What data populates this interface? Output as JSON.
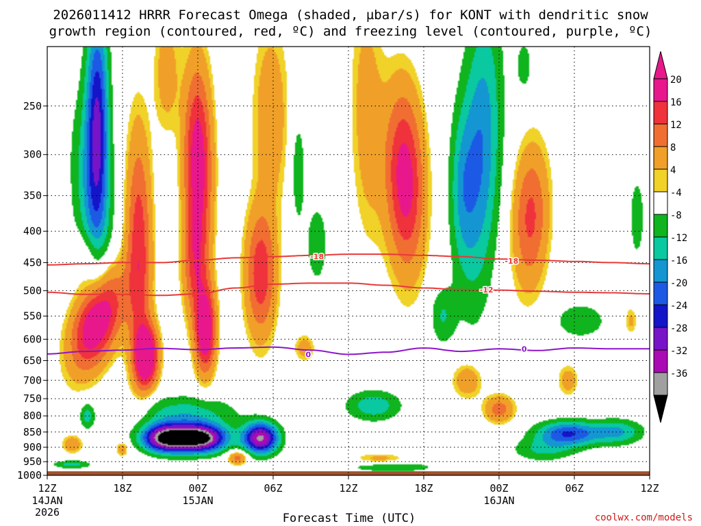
{
  "chart_data": {
    "type": "heatmap",
    "title_line1": "2026011412 HRRR Forecast Omega (shaded, µbar/s) for KONT with dendritic snow",
    "title_line2": "growth region (contoured, red, ºC) and freezing level (contoured, purple, ºC)",
    "xlabel": "Forecast Time (UTC)",
    "ylabel": "",
    "credit": "coolwx.com/models",
    "x_ticks": [
      {
        "hour": 0,
        "label": "12Z",
        "date": "14JAN",
        "year": "2026"
      },
      {
        "hour": 6,
        "label": "18Z"
      },
      {
        "hour": 12,
        "label": "00Z",
        "date": "15JAN"
      },
      {
        "hour": 18,
        "label": "06Z"
      },
      {
        "hour": 24,
        "label": "12Z"
      },
      {
        "hour": 30,
        "label": "18Z"
      },
      {
        "hour": 36,
        "label": "00Z",
        "date": "16JAN"
      },
      {
        "hour": 42,
        "label": "06Z"
      },
      {
        "hour": 48,
        "label": "12Z"
      }
    ],
    "y_ticks": [
      "250",
      "300",
      "350",
      "400",
      "450",
      "500",
      "550",
      "600",
      "650",
      "700",
      "750",
      "800",
      "850",
      "900",
      "950",
      "1000"
    ],
    "y_range_hpa": [
      200,
      1000
    ],
    "x_range_hours": [
      0,
      48
    ],
    "colorbar": {
      "labels": [
        "20",
        "16",
        "12",
        "8",
        "4",
        "-4",
        "-8",
        "-12",
        "-16",
        "-20",
        "-24",
        "-28",
        "-32",
        "-36"
      ],
      "colors": [
        "#e8188c",
        "#f0323c",
        "#f06e32",
        "#f0a028",
        "#f0d228",
        "#ffffff",
        "#10b41e",
        "#0ac8a0",
        "#1496d2",
        "#1c5ae6",
        "#1414c8",
        "#7814c8",
        "#aa0ab4",
        "#a0a0a0"
      ],
      "top_arrow_color": "#e8188c",
      "bottom_arrow_color": "#000000"
    },
    "contours": [
      {
        "name": "dgz-upper",
        "label": "-18",
        "color": "#e83838",
        "hours": [
          0,
          3,
          6,
          9,
          12,
          15,
          18,
          21,
          24,
          27,
          30,
          33,
          36,
          39,
          42,
          45,
          48
        ],
        "pressure": [
          454,
          452,
          450,
          450,
          446,
          442,
          440,
          438,
          436,
          436,
          438,
          440,
          444,
          446,
          448,
          450,
          452
        ]
      },
      {
        "name": "dgz-lower",
        "label": "-12",
        "color": "#e83838",
        "hours": [
          0,
          3,
          6,
          9,
          12,
          15,
          18,
          21,
          24,
          27,
          30,
          33,
          36,
          39,
          42,
          45,
          48
        ],
        "pressure": [
          503,
          507,
          507,
          509,
          506,
          495,
          488,
          486,
          486,
          490,
          495,
          498,
          499,
          501,
          503,
          504,
          506
        ]
      },
      {
        "name": "freezing-level",
        "label": "0",
        "color": "#8c14c8",
        "hours": [
          0,
          3,
          6,
          9,
          12,
          15,
          18,
          21,
          24,
          27,
          30,
          33,
          36,
          39,
          42,
          45,
          48
        ],
        "pressure": [
          634,
          628,
          625,
          621,
          624,
          620,
          618,
          625,
          635,
          630,
          620,
          628,
          622,
          626,
          620,
          622,
          622
        ]
      }
    ],
    "contour_labels": [
      {
        "text": "-18",
        "hour": 21.5,
        "pressure": 440,
        "color": "#e83838"
      },
      {
        "text": "-18",
        "hour": 37.0,
        "pressure": 447,
        "color": "#e83838"
      },
      {
        "text": "-12",
        "hour": 35.0,
        "pressure": 498,
        "color": "#e83838"
      },
      {
        "text": "0",
        "hour": 20.8,
        "pressure": 635,
        "color": "#8c14c8"
      },
      {
        "text": "0",
        "hour": 38.0,
        "pressure": 622,
        "color": "#8c14c8"
      }
    ],
    "omega_features": [
      {
        "hour": 4.0,
        "pressure": 560,
        "sx": 1.8,
        "sy": 100,
        "value": 24,
        "rot": -0.5
      },
      {
        "hour": 7.3,
        "pressure": 430,
        "sx": 1.0,
        "sy": 190,
        "value": 15,
        "rot": 0.05
      },
      {
        "hour": 7.9,
        "pressure": 640,
        "sx": 0.9,
        "sy": 70,
        "value": 24,
        "rot": 0
      },
      {
        "hour": 12.0,
        "pressure": 310,
        "sx": 1.1,
        "sy": 110,
        "value": 20,
        "rot": 0.05
      },
      {
        "hour": 12.6,
        "pressure": 580,
        "sx": 0.8,
        "sy": 90,
        "value": 22,
        "rot": 0
      },
      {
        "hour": 11.8,
        "pressure": 460,
        "sx": 1.0,
        "sy": 90,
        "value": 10,
        "rot": 0
      },
      {
        "hour": 17.0,
        "pressure": 470,
        "sx": 1.2,
        "sy": 110,
        "value": 15,
        "rot": 0
      },
      {
        "hour": 17.8,
        "pressure": 260,
        "sx": 1.4,
        "sy": 90,
        "value": 7,
        "rot": 0
      },
      {
        "hour": 9.5,
        "pressure": 220,
        "sx": 1.0,
        "sy": 50,
        "value": 6,
        "rot": 0
      },
      {
        "hour": 28.5,
        "pressure": 330,
        "sx": 1.5,
        "sy": 110,
        "value": 19,
        "rot": 0.12
      },
      {
        "hour": 25.5,
        "pressure": 260,
        "sx": 1.3,
        "sy": 120,
        "value": 6,
        "rot": 0.1
      },
      {
        "hour": 38.5,
        "pressure": 380,
        "sx": 1.4,
        "sy": 100,
        "value": 13,
        "rot": -0.1
      },
      {
        "hour": 36.0,
        "pressure": 780,
        "sx": 1.2,
        "sy": 40,
        "value": 10,
        "rot": 0
      },
      {
        "hour": 33.5,
        "pressure": 700,
        "sx": 1.2,
        "sy": 50,
        "value": 8,
        "rot": 0
      },
      {
        "hour": 3.0,
        "pressure": 440,
        "sx": 1.5,
        "sy": 40,
        "value": 6,
        "rot": 0
      },
      {
        "hour": 41.5,
        "pressure": 700,
        "sx": 0.8,
        "sy": 40,
        "value": 6,
        "rot": 0
      },
      {
        "hour": 15.2,
        "pressure": 935,
        "sx": 0.8,
        "sy": 25,
        "value": 11,
        "rot": 0
      },
      {
        "hour": 20.5,
        "pressure": 620,
        "sx": 0.8,
        "sy": 30,
        "value": 6,
        "rot": 0
      },
      {
        "hour": 2.0,
        "pressure": 890,
        "sx": 0.8,
        "sy": 30,
        "value": 7,
        "rot": 0
      },
      {
        "hour": 6.0,
        "pressure": 905,
        "sx": 0.5,
        "sy": 25,
        "value": 7,
        "rot": 0
      },
      {
        "hour": 26.5,
        "pressure": 940,
        "sx": 2.0,
        "sy": 20,
        "value": 5,
        "rot": 0
      },
      {
        "hour": 46.5,
        "pressure": 560,
        "sx": 0.5,
        "sy": 30,
        "value": 5,
        "rot": 0
      },
      {
        "hour": 9.5,
        "pressure": 870,
        "sx": 2.0,
        "sy": 45,
        "value": -38,
        "rot": 0
      },
      {
        "hour": 12.3,
        "pressure": 870,
        "sx": 2.0,
        "sy": 45,
        "value": -37,
        "rot": 0
      },
      {
        "hour": 17.0,
        "pressure": 870,
        "sx": 1.4,
        "sy": 50,
        "value": -33,
        "rot": 0
      },
      {
        "hour": 11.0,
        "pressure": 790,
        "sx": 4.0,
        "sy": 50,
        "value": -10,
        "rot": 0
      },
      {
        "hour": 4.0,
        "pressure": 260,
        "sx": 0.9,
        "sy": 110,
        "value": -22,
        "rot": 0
      },
      {
        "hour": 3.5,
        "pressure": 350,
        "sx": 1.6,
        "sy": 130,
        "value": -10,
        "rot": 0.3
      },
      {
        "hour": 34.5,
        "pressure": 300,
        "sx": 1.6,
        "sy": 160,
        "value": -16,
        "rot": -0.25
      },
      {
        "hour": 33.0,
        "pressure": 340,
        "sx": 1.0,
        "sy": 100,
        "value": -8,
        "rot": 0
      },
      {
        "hour": 21.5,
        "pressure": 420,
        "sx": 0.8,
        "sy": 60,
        "value": -8,
        "rot": 0
      },
      {
        "hour": 20.0,
        "pressure": 320,
        "sx": 0.6,
        "sy": 70,
        "value": -7,
        "rot": 0
      },
      {
        "hour": 26.0,
        "pressure": 770,
        "sx": 2.2,
        "sy": 45,
        "value": -11,
        "rot": 0
      },
      {
        "hour": 31.5,
        "pressure": 550,
        "sx": 1.0,
        "sy": 60,
        "value": -8,
        "rot": 0
      },
      {
        "hour": 27.5,
        "pressure": 970,
        "sx": 3.5,
        "sy": 18,
        "value": -8,
        "rot": 0
      },
      {
        "hour": 41.5,
        "pressure": 855,
        "sx": 2.5,
        "sy": 40,
        "value": -20,
        "rot": 0
      },
      {
        "hour": 45.5,
        "pressure": 850,
        "sx": 2.0,
        "sy": 40,
        "value": -12,
        "rot": 0
      },
      {
        "hour": 39.5,
        "pressure": 910,
        "sx": 2.5,
        "sy": 40,
        "value": -8,
        "rot": 0
      },
      {
        "hour": 42.5,
        "pressure": 560,
        "sx": 2.2,
        "sy": 40,
        "value": -7,
        "rot": 0
      },
      {
        "hour": 2.0,
        "pressure": 960,
        "sx": 1.5,
        "sy": 15,
        "value": -10,
        "rot": 0
      },
      {
        "hour": 3.2,
        "pressure": 800,
        "sx": 0.6,
        "sy": 40,
        "value": -10,
        "rot": 0
      },
      {
        "hour": 47.0,
        "pressure": 380,
        "sx": 0.6,
        "sy": 60,
        "value": -7,
        "rot": 0
      },
      {
        "hour": 38.0,
        "pressure": 215,
        "sx": 0.6,
        "sy": 20,
        "value": -7,
        "rot": 0
      }
    ],
    "ground_level_hpa": 985,
    "ground_color": "#a0522d",
    "grid": true
  }
}
